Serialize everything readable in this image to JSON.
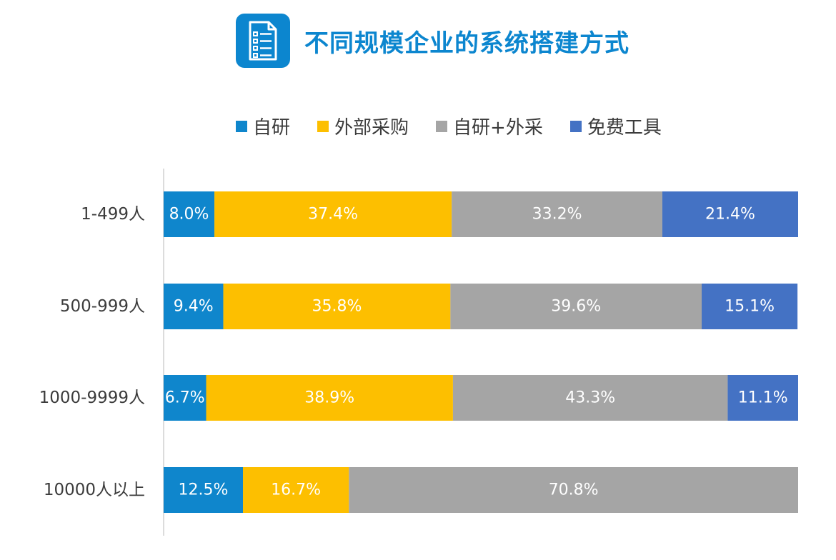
{
  "header": {
    "title": "不同规模企业的系统搭建方式",
    "icon": "document-list-icon"
  },
  "colors": {
    "title": "#0c86cf",
    "icon_bg": "#0c86cf"
  },
  "chart_data": {
    "type": "bar",
    "orientation": "horizontal",
    "stacked": true,
    "percent": true,
    "categories": [
      "1-499人",
      "500-999人",
      "1000-9999人",
      "10000人以上"
    ],
    "series": [
      {
        "name": "自研",
        "color": "#0f86cc",
        "values": [
          8.0,
          9.4,
          6.7,
          12.5
        ],
        "labels": [
          "8.0%",
          "9.4%",
          "6.7%",
          "12.5%"
        ]
      },
      {
        "name": "外部采购",
        "color": "#fdbf00",
        "values": [
          37.4,
          35.8,
          38.9,
          16.7
        ],
        "labels": [
          "37.4%",
          "35.8%",
          "38.9%",
          "16.7%"
        ]
      },
      {
        "name": "自研+外采",
        "color": "#a5a5a5",
        "values": [
          33.2,
          39.6,
          43.3,
          70.8
        ],
        "labels": [
          "33.2%",
          "39.6%",
          "43.3%",
          "70.8%"
        ]
      },
      {
        "name": "免费工具",
        "color": "#4472c4",
        "values": [
          21.4,
          15.1,
          11.1,
          0
        ],
        "labels": [
          "21.4%",
          "15.1%",
          "11.1%",
          ""
        ]
      }
    ],
    "xlim": [
      0,
      100
    ],
    "legend_position": "top",
    "grid": false
  }
}
